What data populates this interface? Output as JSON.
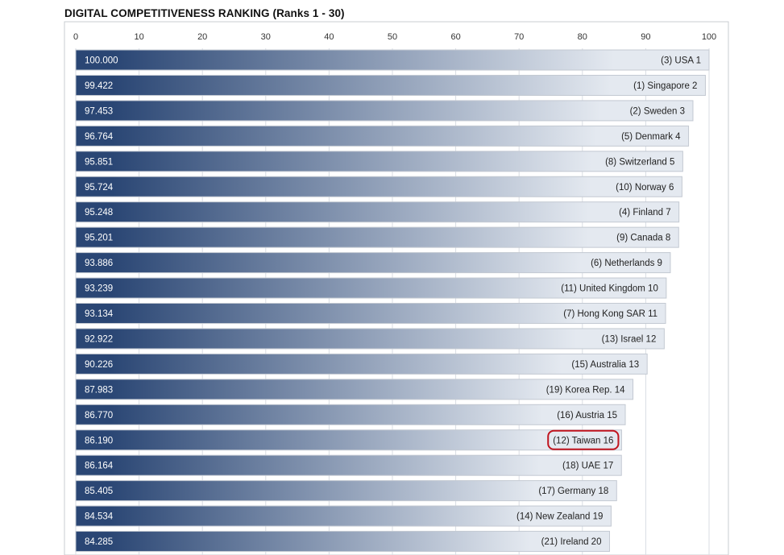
{
  "chart_data": {
    "type": "bar",
    "orientation": "horizontal",
    "title": "DIGITAL COMPETITIVENESS RANKING (Ranks 1 - 30)",
    "xlim": [
      0,
      100
    ],
    "x_ticks": [
      "0",
      "10",
      "20",
      "30",
      "40",
      "50",
      "60",
      "70",
      "80",
      "90",
      "100"
    ],
    "grid": true,
    "value_labels": [
      "100.000",
      "99.422",
      "97.453",
      "96.764",
      "95.851",
      "95.724",
      "95.248",
      "95.201",
      "93.886",
      "93.239",
      "93.134",
      "92.922",
      "90.226",
      "87.983",
      "86.770",
      "86.190",
      "86.164",
      "85.405",
      "84.534",
      "84.285"
    ],
    "values": [
      100.0,
      99.422,
      97.453,
      96.764,
      95.851,
      95.724,
      95.248,
      95.201,
      93.886,
      93.239,
      93.134,
      92.922,
      90.226,
      87.983,
      86.77,
      86.19,
      86.164,
      85.405,
      84.534,
      84.285
    ],
    "categories": [
      "(3) USA 1",
      "(1) Singapore 2",
      "(2) Sweden 3",
      "(5) Denmark 4",
      "(8) Switzerland 5",
      "(10) Norway 6",
      "(4) Finland 7",
      "(9) Canada 8",
      "(6) Netherlands 9",
      "(11) United Kingdom 10",
      "(7) Hong Kong SAR 11",
      "(13) Israel 12",
      "(15) Australia 13",
      "(19) Korea Rep. 14",
      "(16) Austria 15",
      "(12) Taiwan 16",
      "(18) UAE 17",
      "(17) Germany 18",
      "(14) New Zealand 19",
      "(21) Ireland 20"
    ],
    "highlighted_category": "(12) Taiwan 16",
    "highlight_color": "#c0141e",
    "bar_gradient": [
      "#2a4674",
      "#e4e9f0"
    ]
  }
}
